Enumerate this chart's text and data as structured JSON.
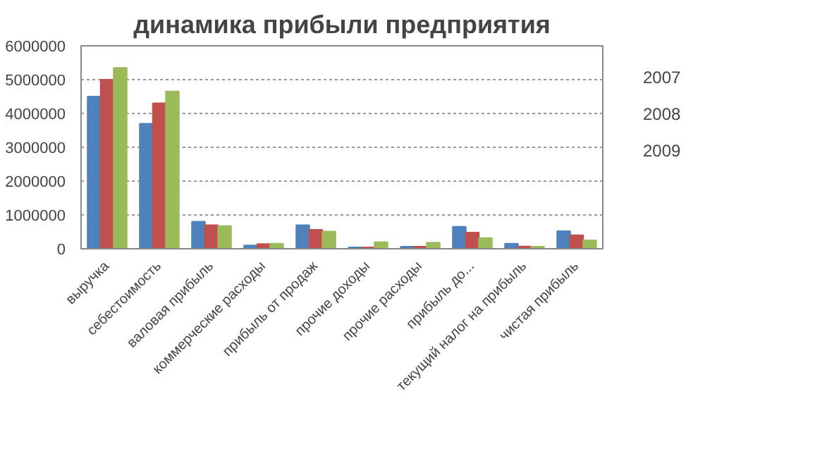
{
  "chart_data": {
    "type": "bar",
    "title": "динамика прибыли предприятия",
    "categories": [
      "выручка",
      "себестоимость",
      "валовая прибыль",
      "коммерческие расходы",
      "прибыль от продаж",
      "прочие доходы",
      "прочие расходы",
      "прибыль до...",
      "текущий налог на прибыль",
      "чистая прибыль"
    ],
    "series": [
      {
        "name": "2007",
        "color": "#4f81bd",
        "values": [
          4500000,
          3700000,
          800000,
          100000,
          700000,
          40000,
          60000,
          650000,
          150000,
          520000
        ]
      },
      {
        "name": "2008",
        "color": "#c0504d",
        "values": [
          5000000,
          4300000,
          700000,
          140000,
          560000,
          40000,
          60000,
          480000,
          70000,
          400000
        ]
      },
      {
        "name": "2009",
        "color": "#9bbb59",
        "values": [
          5350000,
          4650000,
          670000,
          150000,
          510000,
          200000,
          180000,
          320000,
          60000,
          250000
        ]
      }
    ],
    "ylim": [
      0,
      6000000
    ],
    "yticks": [
      0,
      1000000,
      2000000,
      3000000,
      4000000,
      5000000,
      6000000
    ],
    "grid": "y",
    "legend": "right"
  }
}
